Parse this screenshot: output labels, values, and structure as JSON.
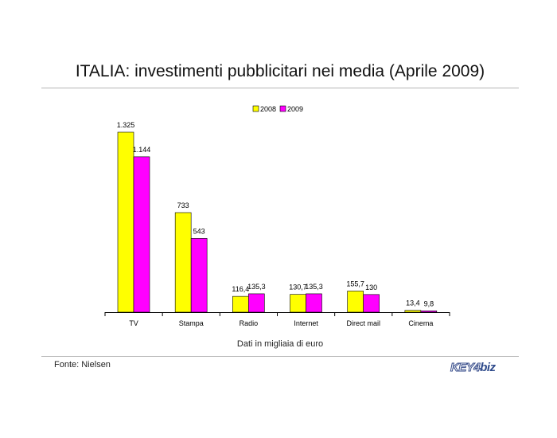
{
  "slide": {
    "title": "ITALIA: investimenti pubblicitari nei media (Aprile 2009)",
    "note": "Dati in migliaia di euro",
    "source": "Fonte: Nielsen",
    "logo": "KEY4biz"
  },
  "colors": {
    "series_2008": "#ffff00",
    "series_2009": "#ff00ff",
    "axis": "#000000",
    "rule": "#b5b5b5"
  },
  "chart_data": {
    "type": "bar",
    "title": "",
    "xlabel": "",
    "ylabel": "",
    "ylim": [
      0,
      1325
    ],
    "grid": false,
    "legend_position": "top",
    "categories": [
      "TV",
      "Stampa",
      "Radio",
      "Internet",
      "Direct mail",
      "Cinema"
    ],
    "series": [
      {
        "name": "2008",
        "values": [
          1325,
          733,
          116.4,
          130.7,
          155.7,
          13.4
        ],
        "labels": [
          "1.325",
          "733",
          "116,4",
          "130,7",
          "155,7",
          "13,4"
        ]
      },
      {
        "name": "2009",
        "values": [
          1144,
          543,
          135.3,
          135.3,
          130,
          9.8
        ],
        "labels": [
          "1.144",
          "543",
          "135,3",
          "135,3",
          "130",
          "9,8"
        ]
      }
    ]
  }
}
